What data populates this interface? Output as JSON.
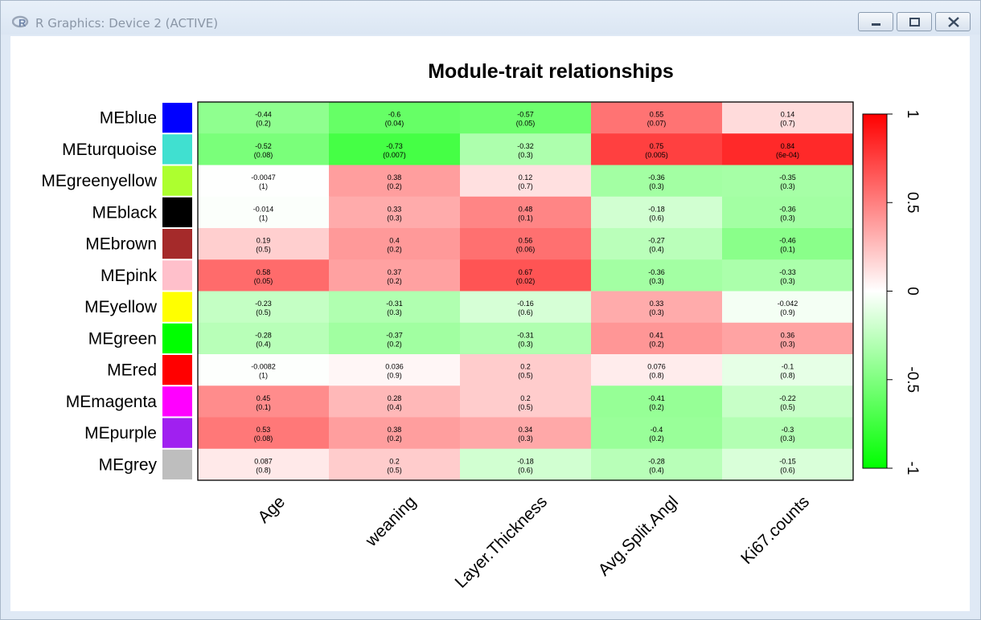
{
  "window": {
    "title": "R Graphics: Device 2 (ACTIVE)",
    "app_icon": "r-logo-icon",
    "buttons": [
      "minimize-icon",
      "maximize-icon",
      "close-icon"
    ]
  },
  "chart_data": {
    "type": "heatmap",
    "title": "Module-trait relationships",
    "rows": [
      "MEblue",
      "MEturquoise",
      "MEgreenyellow",
      "MEblack",
      "MEbrown",
      "MEpink",
      "MEyellow",
      "MEgreen",
      "MEred",
      "MEmagenta",
      "MEpurple",
      "MEgrey"
    ],
    "row_colors": [
      "#0000ff",
      "#40e0d0",
      "#adff2f",
      "#000000",
      "#a52a2a",
      "#ffc0cb",
      "#ffff00",
      "#00ff00",
      "#ff0000",
      "#ff00ff",
      "#a020f0",
      "#bebebe"
    ],
    "columns": [
      "Age",
      "weaning",
      "Layer.Thickness",
      "Avg.Split.Angl",
      "Ki67.counts"
    ],
    "values": [
      [
        -0.44,
        -0.6,
        -0.57,
        0.55,
        0.14
      ],
      [
        -0.52,
        -0.73,
        -0.32,
        0.75,
        0.84
      ],
      [
        -0.0047,
        0.38,
        0.12,
        -0.36,
        -0.35
      ],
      [
        -0.014,
        0.33,
        0.48,
        -0.18,
        -0.36
      ],
      [
        0.19,
        0.4,
        0.56,
        -0.27,
        -0.46
      ],
      [
        0.58,
        0.37,
        0.67,
        -0.36,
        -0.33
      ],
      [
        -0.23,
        -0.31,
        -0.16,
        0.33,
        -0.042
      ],
      [
        -0.28,
        -0.37,
        -0.31,
        0.41,
        0.36
      ],
      [
        -0.0082,
        0.036,
        0.2,
        0.076,
        -0.1
      ],
      [
        0.45,
        0.28,
        0.2,
        -0.41,
        -0.22
      ],
      [
        0.53,
        0.38,
        0.34,
        -0.4,
        -0.3
      ],
      [
        0.087,
        0.2,
        -0.18,
        -0.28,
        -0.15
      ]
    ],
    "pvalues": [
      [
        "0.2",
        "0.04",
        "0.05",
        "0.07",
        "0.7"
      ],
      [
        "0.08",
        "0.007",
        "0.3",
        "0.005",
        "6e-04"
      ],
      [
        "1",
        "0.2",
        "0.7",
        "0.3",
        "0.3"
      ],
      [
        "1",
        "0.3",
        "0.1",
        "0.6",
        "0.3"
      ],
      [
        "0.5",
        "0.2",
        "0.06",
        "0.4",
        "0.1"
      ],
      [
        "0.05",
        "0.2",
        "0.02",
        "0.3",
        "0.3"
      ],
      [
        "0.5",
        "0.3",
        "0.6",
        "0.3",
        "0.9"
      ],
      [
        "0.4",
        "0.2",
        "0.3",
        "0.2",
        "0.3"
      ],
      [
        "1",
        "0.9",
        "0.5",
        "0.8",
        "0.8"
      ],
      [
        "0.1",
        "0.4",
        "0.5",
        "0.2",
        "0.5"
      ],
      [
        "0.08",
        "0.2",
        "0.3",
        "0.2",
        "0.3"
      ],
      [
        "0.8",
        "0.5",
        "0.6",
        "0.4",
        "0.6"
      ]
    ],
    "colorbar": {
      "range": [
        -1,
        1
      ],
      "ticks": [
        "-1",
        "-0.5",
        "0",
        "0.5",
        "1"
      ],
      "low_color": "#00ff00",
      "mid_color": "#ffffff",
      "high_color": "#ff0000"
    }
  }
}
